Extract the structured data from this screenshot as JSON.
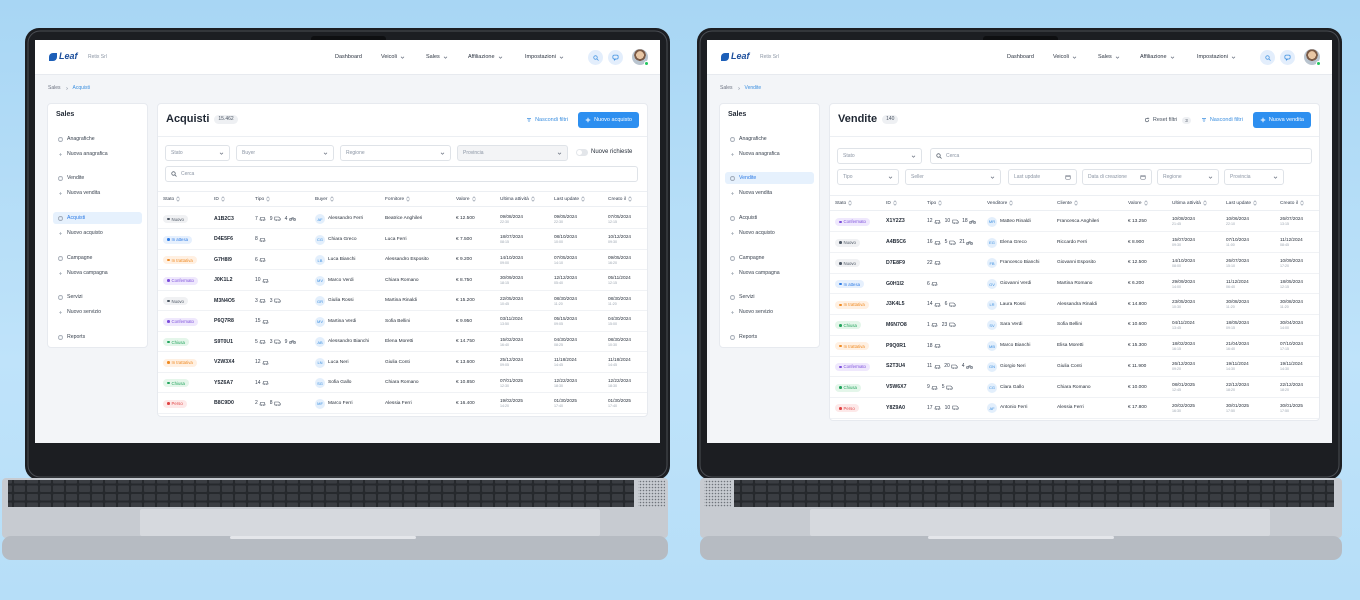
{
  "status_colors": {
    "Nuovo": {
      "bg": "#f0f1f3",
      "fg": "#4b5563"
    },
    "In attesa": {
      "bg": "#e6f0fd",
      "fg": "#2d7be5"
    },
    "In trattativa": {
      "bg": "#fff0e2",
      "fg": "#ef8a22"
    },
    "Confermato": {
      "bg": "#efe8fd",
      "fg": "#7c4ddb"
    },
    "Chiusa": {
      "bg": "#e4f6ea",
      "fg": "#22a45d"
    },
    "Perso": {
      "bg": "#fde9e9",
      "fg": "#e04545"
    }
  },
  "screens": [
    {
      "brand": "Leaf",
      "company": "Retix Srl",
      "nav": [
        "Dashboard",
        "Veicoli",
        "Sales",
        "Affiliazione",
        "Impostazioni"
      ],
      "breadcrumb": [
        "Sales",
        "Acquisti"
      ],
      "sidebar": {
        "title": "Sales",
        "items": [
          "Anagrafiche",
          "Nuova anagrafica",
          "Vendite",
          "Nuova vendita",
          "Acquisti",
          "Nuovo acquisto",
          "Campagne",
          "Nuova campagna",
          "Servizi",
          "Nuovo servizio",
          "Reports"
        ]
      },
      "page": {
        "title": "Acquisti",
        "count": "15.462",
        "actions": [
          {
            "label": "Nascondi filtri"
          },
          {
            "label": "Nuovo acquisto"
          }
        ]
      },
      "filters": [
        [
          "Stato",
          "Buyer",
          "Regione",
          "Provincia"
        ]
      ],
      "toggle": "Nuove richieste",
      "search": "Cerca",
      "columns": [
        "Stato",
        "ID",
        "Tipo",
        "Buyer",
        "Fornitore",
        "Valore",
        "Ultima attività",
        "Last update",
        "Creato il"
      ],
      "rows": [
        [
          "Nuovo",
          "A1B2C3",
          [
            "7",
            "9",
            "4"
          ],
          "AF",
          "Alessandro Ferri",
          "Beatrice Anghileri",
          "€ 12.500",
          "09/08/2024",
          "22:30",
          "09/05/2024",
          "22:30",
          "07/05/2024",
          "12:15"
        ],
        [
          "In attesa",
          "D4E5F6",
          [
            "8"
          ],
          "CG",
          "Chiara Greco",
          "Luca Ferri",
          "€ 7.500",
          "18/07/2024",
          "08:15",
          "08/10/2024",
          "10:00",
          "10/12/2024",
          "09:30"
        ],
        [
          "In trattativa",
          "G7H8I9",
          [
            "6"
          ],
          "LB",
          "Luca Bianchi",
          "Alessandro Esposito",
          "€ 9.200",
          "14/10/2024",
          "09:00",
          "07/05/2024",
          "14:10",
          "09/05/2024",
          "16:20"
        ],
        [
          "Confermato",
          "J0K1L2",
          [
            "10"
          ],
          "MV",
          "Marco Verdi",
          "Chiara Romano",
          "€ 8.750",
          "30/09/2024",
          "18:15",
          "12/12/2024",
          "05:40",
          "05/11/2024",
          "12:15"
        ],
        [
          "Nuovo",
          "M3N4O5",
          [
            "3",
            "3"
          ],
          "GR",
          "Giulia Rossi",
          "Martina Rinaldi",
          "€ 15.200",
          "22/05/2024",
          "10:45",
          "08/30/2024",
          "11:20",
          "08/30/2024",
          "11:20"
        ],
        [
          "Confermato",
          "P6Q7R8",
          [
            "15"
          ],
          "MV",
          "Martina Verdi",
          "Sofia Bellini",
          "€ 9.950",
          "03/11/2024",
          "13:50",
          "05/15/2024",
          "09:05",
          "04/30/2024",
          "15:00"
        ],
        [
          "Chiusa",
          "S9T0U1",
          [
            "5",
            "3",
            "9"
          ],
          "AB",
          "Alessandro Bianchi",
          "Elena Moretti",
          "€ 14.750",
          "15/02/2024",
          "16:40",
          "04/30/2024",
          "08:25",
          "08/30/2024",
          "10:30"
        ],
        [
          "In trattativa",
          "V2W3X4",
          [
            "12"
          ],
          "LN",
          "Luca Neri",
          "Giulia Conti",
          "€ 13.600",
          "25/12/2024",
          "09:05",
          "11/18/2024",
          "14:45",
          "11/18/2024",
          "14:45"
        ],
        [
          "Chiusa",
          "Y5Z6A7",
          [
            "14"
          ],
          "SG",
          "Sofia Gallo",
          "Chiara Romano",
          "€ 10.850",
          "07/01/2025",
          "12:30",
          "12/22/2024",
          "18:30",
          "12/22/2024",
          "18:30"
        ],
        [
          "Perso",
          "B8C9D0",
          [
            "2",
            "8"
          ],
          "MF",
          "Marco Ferri",
          "Alessia Ferri",
          "€ 16.400",
          "19/02/2025",
          "14:20",
          "01/30/2025",
          "17:40",
          "01/30/2025",
          "17:40"
        ]
      ]
    },
    {
      "brand": "Leaf",
      "company": "Retix Srl",
      "nav": [
        "Dashboard",
        "Veicoli",
        "Sales",
        "Affiliazione",
        "Impostazioni"
      ],
      "breadcrumb": [
        "Sales",
        "Vendite"
      ],
      "sidebar": {
        "title": "Sales",
        "items": [
          "Anagrafiche",
          "Nuova anagrafica",
          "Vendite",
          "Nuova vendita",
          "Acquisti",
          "Nuovo acquisto",
          "Campagne",
          "Nuova campagna",
          "Servizi",
          "Nuovo servizio",
          "Reports"
        ]
      },
      "page": {
        "title": "Vendite",
        "count": "140",
        "actions": [
          {
            "label": "Reset filtri",
            "badge": "3"
          },
          {
            "label": "Nascondi filtri"
          },
          {
            "label": "Nuova vendita"
          }
        ]
      },
      "filters": [
        [
          "Stato"
        ],
        [
          "Tipo",
          "Seller",
          "Last update",
          "Data di creazione",
          "Regione",
          "Provincia"
        ]
      ],
      "search": "Cerca",
      "columns": [
        "Stato",
        "ID",
        "Tipo",
        "Venditore",
        "Cliente",
        "Valore",
        "Ultima attività",
        "Last update",
        "Creato il"
      ],
      "rows": [
        [
          "Confermato",
          "X1Y2Z3",
          [
            "12",
            "10",
            "18"
          ],
          "MR",
          "Matteo Rinaldi",
          "Francesca Anghileri",
          "€ 13.250",
          "10/08/2024",
          "21:45",
          "10/06/2024",
          "22:10",
          "26/07/2024",
          "13:15"
        ],
        [
          "Nuovo",
          "A4B5C6",
          [
            "16",
            "5",
            "21"
          ],
          "EG",
          "Elena Greco",
          "Riccardo Ferri",
          "€ 8.900",
          "15/07/2024",
          "09:30",
          "07/10/2024",
          "11:00",
          "11/12/2024",
          "08:45"
        ],
        [
          "Nuovo",
          "D7E8F9",
          [
            "22"
          ],
          "FB",
          "Francesco Bianchi",
          "Giovanni Esposito",
          "€ 12.500",
          "14/10/2024",
          "08:00",
          "26/07/2024",
          "15:10",
          "10/09/2024",
          "17:20"
        ],
        [
          "In attesa",
          "G0H1I2",
          [
            "6"
          ],
          "GV",
          "Giovanni Verdi",
          "Martina Romano",
          "€ 6.200",
          "29/09/2024",
          "14:00",
          "11/12/2024",
          "06:40",
          "18/05/2024",
          "12:15"
        ],
        [
          "In trattativa",
          "J3K4L5",
          [
            "14",
            "6"
          ],
          "LR",
          "Laura Rossi",
          "Alessandra Rinaldi",
          "€ 14.800",
          "23/05/2024",
          "10:30",
          "30/08/2024",
          "11:20",
          "30/08/2024",
          "11:20"
        ],
        [
          "Chiusa",
          "M6N7O8",
          [
            "1",
            "23"
          ],
          "SV",
          "Sara Verdi",
          "Sofia Bellini",
          "€ 10.600",
          "04/11/2024",
          "13:45",
          "18/05/2024",
          "09:15",
          "30/04/2024",
          "14:00"
        ],
        [
          "In trattativa",
          "P9Q0R1",
          [
            "18"
          ],
          "MB",
          "Marco Bianchi",
          "Elisa Moretti",
          "€ 15.300",
          "18/02/2024",
          "16:15",
          "21/04/2024",
          "16:40",
          "07/10/2024",
          "17:15"
        ],
        [
          "Confermato",
          "S2T3U4",
          [
            "11",
            "20",
            "4"
          ],
          "GN",
          "Giorgio Neri",
          "Giulia Conti",
          "€ 11.900",
          "26/12/2024",
          "09:20",
          "19/11/2024",
          "14:30",
          "19/11/2024",
          "14:30"
        ],
        [
          "Chiusa",
          "V5W6X7",
          [
            "9",
            "5"
          ],
          "CG",
          "Clara Gallo",
          "Chiara Romano",
          "€ 10.000",
          "08/01/2025",
          "12:45",
          "22/12/2024",
          "18:20",
          "22/12/2024",
          "18:20"
        ],
        [
          "Perso",
          "Y8Z9A0",
          [
            "17",
            "10"
          ],
          "AF",
          "Antonio Ferri",
          "Alessia Ferri",
          "€ 17.800",
          "20/02/2025",
          "16:30",
          "30/01/2025",
          "17:50",
          "30/01/2025",
          "17:50"
        ]
      ]
    }
  ]
}
